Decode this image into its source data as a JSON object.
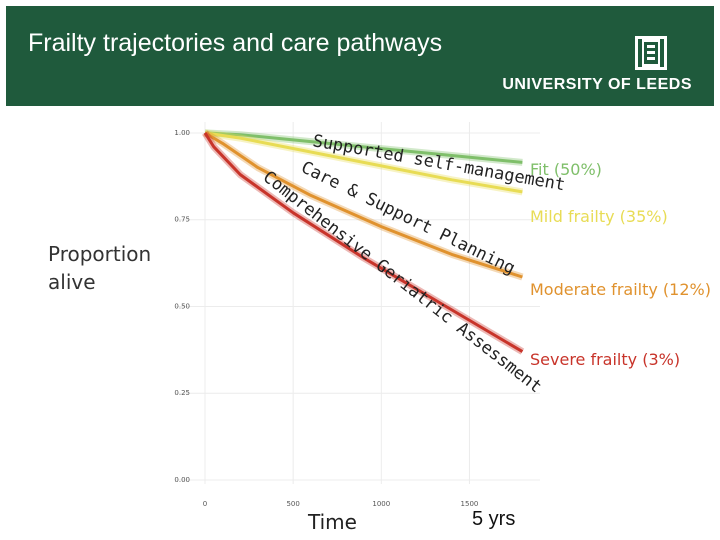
{
  "header": {
    "title": "Frailty trajectories and care pathways",
    "university": "UNIVERSITY OF LEEDS",
    "brand_color": "#1f5a3c"
  },
  "chart_data": {
    "type": "line",
    "title": "",
    "xlabel": "Time",
    "ylabel": "Proportion alive",
    "x_end_label": "5 yrs",
    "xlim": [
      0,
      1900
    ],
    "ylim": [
      0,
      1.02
    ],
    "x_ticks": [
      "0",
      "500",
      "1000",
      "1500"
    ],
    "y_ticks": [
      "0.00",
      "0.25",
      "0.50",
      "0.75",
      "1.00"
    ],
    "x_tick_values": [
      0,
      500,
      1000,
      1500
    ],
    "y_tick_values": [
      0,
      0.25,
      0.5,
      0.75,
      1.0
    ],
    "series": [
      {
        "name": "Fit (50%)",
        "color": "#7fbf6a",
        "x": [
          0,
          200,
          600,
          1000,
          1400,
          1800
        ],
        "values": [
          1.0,
          0.995,
          0.975,
          0.955,
          0.935,
          0.915
        ]
      },
      {
        "name": "Mild frailty (35%)",
        "color": "#e8dc55",
        "x": [
          0,
          200,
          600,
          1000,
          1400,
          1800
        ],
        "values": [
          1.0,
          0.985,
          0.945,
          0.905,
          0.865,
          0.83
        ]
      },
      {
        "name": "Moderate frailty (12%)",
        "color": "#e0922e",
        "x": [
          0,
          100,
          300,
          600,
          1000,
          1400,
          1800
        ],
        "values": [
          1.0,
          0.97,
          0.9,
          0.82,
          0.73,
          0.65,
          0.585
        ]
      },
      {
        "name": "Severe frailty (3%)",
        "color": "#c8342a",
        "x": [
          0,
          50,
          200,
          500,
          900,
          1300,
          1800
        ],
        "values": [
          1.0,
          0.96,
          0.88,
          0.77,
          0.64,
          0.52,
          0.37
        ]
      }
    ],
    "annotations": [
      "Supported self-management",
      "Care & Support Planning",
      "Comprehensive Geriatric Assessment"
    ]
  }
}
